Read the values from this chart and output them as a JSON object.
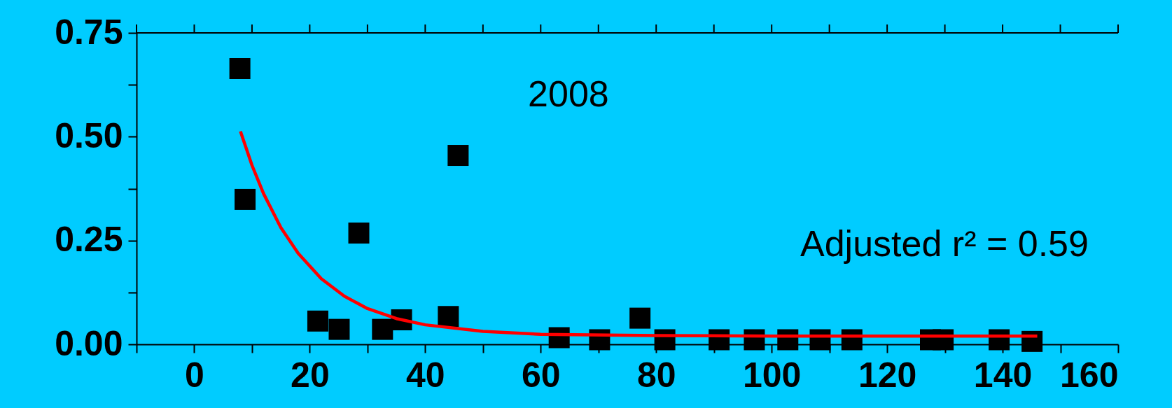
{
  "chart_data": {
    "type": "scatter",
    "annotations": [
      "2008",
      "Adjusted r² = 0.59"
    ],
    "xlim": [
      -10,
      160
    ],
    "xticks": [
      {
        "value": -10,
        "label": null
      },
      0,
      {
        "value": 10,
        "label": null
      },
      20,
      {
        "value": 30,
        "label": null
      },
      40,
      {
        "value": 50,
        "label": null
      },
      60,
      {
        "value": 70,
        "label": null
      },
      80,
      {
        "value": 90,
        "label": null
      },
      100,
      {
        "value": 110,
        "label": null
      },
      120,
      {
        "value": 130,
        "label": null
      },
      140,
      {
        "value": 150,
        "label": null
      },
      160
    ],
    "ylim": [
      0,
      0.75
    ],
    "yticks": [
      {
        "value": 0,
        "label": "0.00"
      },
      {
        "value": 0.125,
        "label": null
      },
      {
        "value": 0.25,
        "label": "0.25"
      },
      {
        "value": 0.375,
        "label": null
      },
      {
        "value": 0.5,
        "label": "0.50"
      },
      {
        "value": 0.625,
        "label": null
      },
      {
        "value": 0.75,
        "label": "0.75"
      }
    ],
    "grid": false,
    "series": [
      {
        "color": "#000000",
        "marker": "square",
        "x": [
          7.9,
          8.8,
          21.4,
          25.1,
          28.5,
          32.6,
          35.9,
          44.0,
          45.7,
          63.2,
          70.2,
          77.2,
          81.5,
          90.9,
          97.0,
          102.8,
          108.4,
          113.9,
          127.5,
          129.7,
          139.4,
          145.1
        ],
        "values": [
          0.664,
          0.349,
          0.056,
          0.036,
          0.268,
          0.036,
          0.059,
          0.067,
          0.455,
          0.016,
          0.011,
          0.063,
          0.011,
          0.011,
          0.011,
          0.011,
          0.011,
          0.011,
          0.011,
          0.011,
          0.011,
          0.007
        ]
      },
      {
        "type": "line",
        "color": "#ff0000",
        "marker": "none",
        "line_style": "solid",
        "x": [
          8,
          10,
          12,
          15,
          18,
          22,
          26,
          30,
          35,
          40,
          50,
          60,
          80,
          100,
          120,
          146
        ],
        "values": [
          0.513,
          0.431,
          0.363,
          0.281,
          0.219,
          0.158,
          0.116,
          0.086,
          0.062,
          0.047,
          0.031,
          0.024,
          0.021,
          0.02,
          0.02,
          0.02
        ]
      }
    ]
  }
}
